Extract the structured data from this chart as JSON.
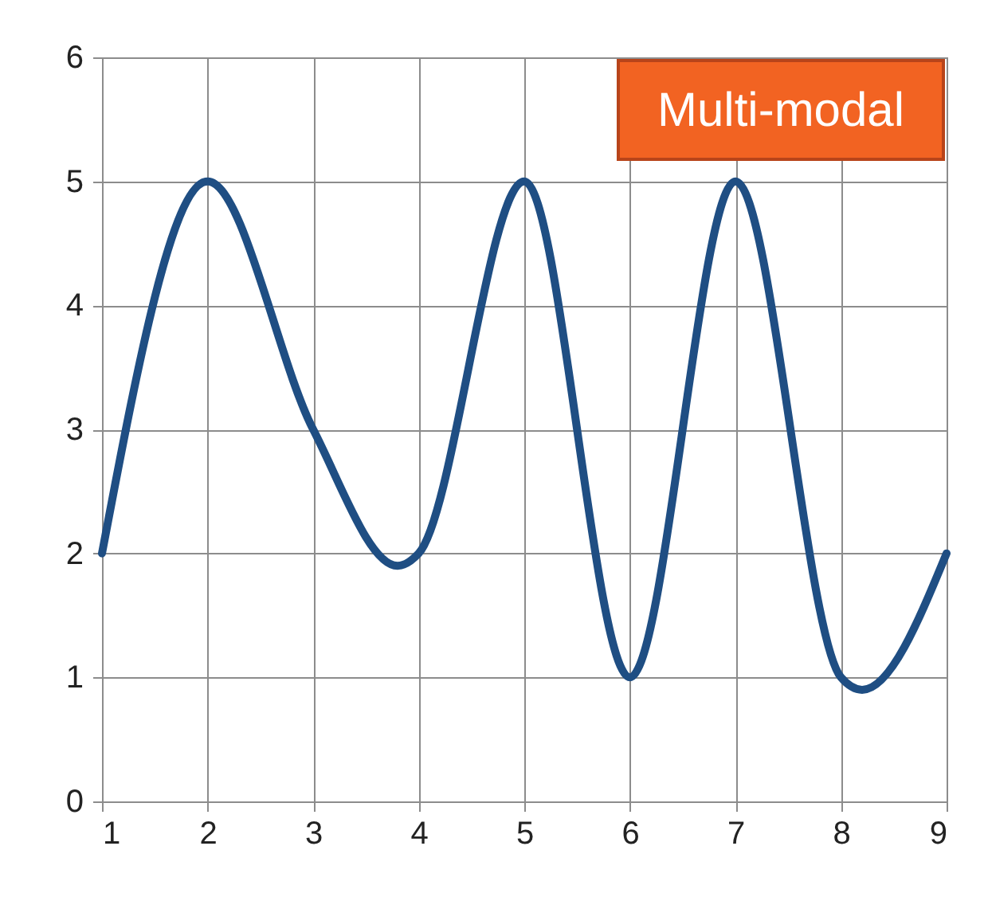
{
  "chart_data": {
    "type": "line",
    "x": [
      1,
      2,
      3,
      3.8,
      4,
      5,
      6,
      7,
      8,
      8.2,
      9
    ],
    "series": [
      {
        "color": "#1f4e83",
        "values": [
          2,
          5,
          3,
          1.9,
          2,
          5,
          1,
          5,
          1,
          0.9,
          2
        ]
      }
    ],
    "xlim": [
      1,
      9
    ],
    "xticks": [
      1,
      2,
      3,
      4,
      5,
      6,
      7,
      8,
      9
    ],
    "ylim": [
      0,
      6
    ],
    "yticks": [
      0,
      1,
      2,
      3,
      4,
      5,
      6
    ],
    "grid": true,
    "annotations": [
      "Multi-modal"
    ]
  }
}
